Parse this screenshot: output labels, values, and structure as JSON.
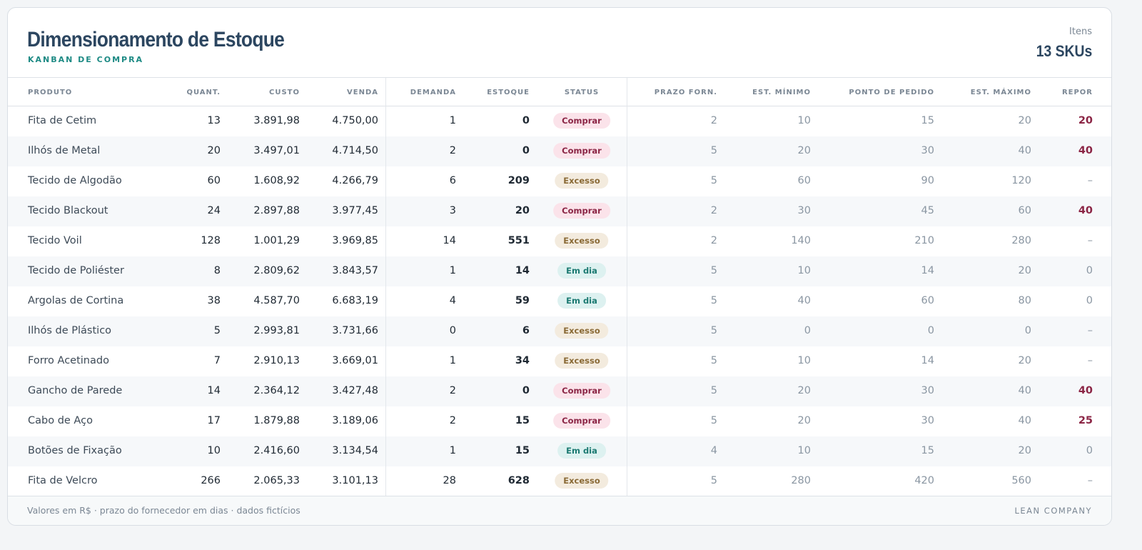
{
  "header": {
    "title": "Dimensionamento de Estoque",
    "subtitle": "KANBAN DE COMPRA",
    "counter_label": "Itens",
    "counter_value": "13 SKUs"
  },
  "table": {
    "columns": [
      "PRODUTO",
      "QUANT.",
      "CUSTO",
      "VENDA",
      "DEMANDA",
      "ESTOQUE",
      "STATUS",
      "PRAZO FORN.",
      "EST. MÍNIMO",
      "PONTO DE PEDIDO",
      "EST. MÁXIMO",
      "REPOR"
    ],
    "rows": [
      [
        "Fita de Cetim",
        "13",
        "3.891,98",
        "4.750,00",
        "1",
        "0",
        "Comprar",
        "2",
        "10",
        "15",
        "20",
        "20"
      ],
      [
        "Ilhós de Metal",
        "20",
        "3.497,01",
        "4.714,50",
        "2",
        "0",
        "Comprar",
        "5",
        "20",
        "30",
        "40",
        "40"
      ],
      [
        "Tecido de Algodão",
        "60",
        "1.608,92",
        "4.266,79",
        "6",
        "209",
        "Excesso",
        "5",
        "60",
        "90",
        "120",
        "–"
      ],
      [
        "Tecido Blackout",
        "24",
        "2.897,88",
        "3.977,45",
        "3",
        "20",
        "Comprar",
        "2",
        "30",
        "45",
        "60",
        "40"
      ],
      [
        "Tecido Voil",
        "128",
        "1.001,29",
        "3.969,85",
        "14",
        "551",
        "Excesso",
        "2",
        "140",
        "210",
        "280",
        "–"
      ],
      [
        "Tecido de Poliéster",
        "8",
        "2.809,62",
        "3.843,57",
        "1",
        "14",
        "Em dia",
        "5",
        "10",
        "14",
        "20",
        "0"
      ],
      [
        "Argolas de Cortina",
        "38",
        "4.587,70",
        "6.683,19",
        "4",
        "59",
        "Em dia",
        "5",
        "40",
        "60",
        "80",
        "0"
      ],
      [
        "Ilhós de Plástico",
        "5",
        "2.993,81",
        "3.731,66",
        "0",
        "6",
        "Excesso",
        "5",
        "0",
        "0",
        "0",
        "–"
      ],
      [
        "Forro Acetinado",
        "7",
        "2.910,13",
        "3.669,01",
        "1",
        "34",
        "Excesso",
        "5",
        "10",
        "14",
        "20",
        "–"
      ],
      [
        "Gancho de Parede",
        "14",
        "2.364,12",
        "3.427,48",
        "2",
        "0",
        "Comprar",
        "5",
        "20",
        "30",
        "40",
        "40"
      ],
      [
        "Cabo de Aço",
        "17",
        "1.879,88",
        "3.189,06",
        "2",
        "15",
        "Comprar",
        "5",
        "20",
        "30",
        "40",
        "25"
      ],
      [
        "Botões de Fixação",
        "10",
        "2.416,60",
        "3.134,54",
        "1",
        "15",
        "Em dia",
        "4",
        "10",
        "15",
        "20",
        "0"
      ],
      [
        "Fita de Velcro",
        "266",
        "2.065,33",
        "3.101,13",
        "28",
        "628",
        "Excesso",
        "5",
        "280",
        "420",
        "560",
        "–"
      ]
    ]
  },
  "footer": {
    "note": "Valores em R$ · prazo do fornecedor em dias · dados fictícios",
    "brand": "LEAN COMPANY"
  }
}
